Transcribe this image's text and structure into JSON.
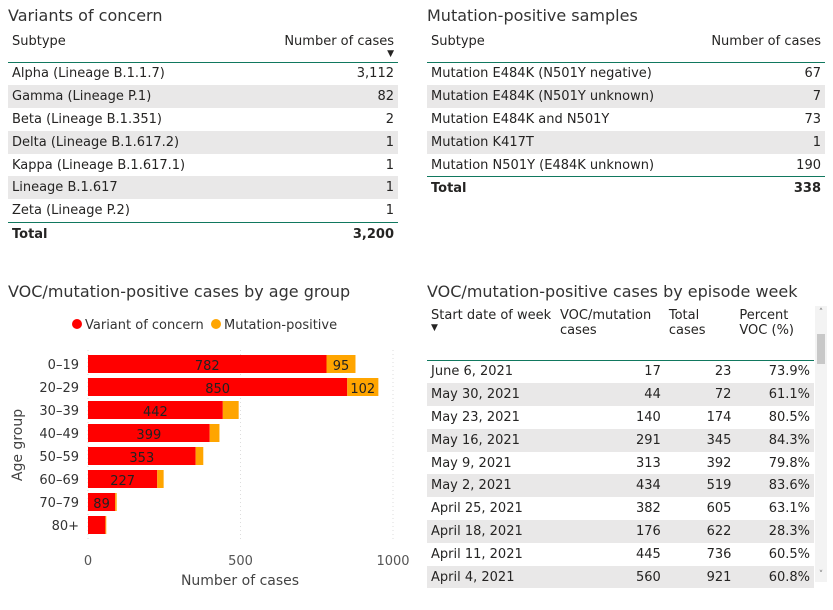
{
  "voc_table": {
    "title": "Variants of concern",
    "headers": [
      "Subtype",
      "Number of cases"
    ],
    "rows": [
      [
        "Alpha (Lineage B.1.1.7)",
        "3,112"
      ],
      [
        "Gamma (Lineage P.1)",
        "82"
      ],
      [
        "Beta (Lineage B.1.351)",
        "2"
      ],
      [
        "Delta (Lineage B.1.617.2)",
        "1"
      ],
      [
        "Kappa (Lineage B.1.617.1)",
        "1"
      ],
      [
        "Lineage B.1.617",
        "1"
      ],
      [
        "Zeta (Lineage P.2)",
        "1"
      ]
    ],
    "total": [
      "Total",
      "3,200"
    ]
  },
  "mut_table": {
    "title": "Mutation-positive samples",
    "headers": [
      "Subtype",
      "Number of cases"
    ],
    "rows": [
      [
        "Mutation E484K (N501Y negative)",
        "67"
      ],
      [
        "Mutation E484K (N501Y unknown)",
        "7"
      ],
      [
        "Mutation E484K and N501Y",
        "73"
      ],
      [
        "Mutation K417T",
        "1"
      ],
      [
        "Mutation N501Y (E484K unknown)",
        "190"
      ]
    ],
    "total": [
      "Total",
      "338"
    ]
  },
  "week_table": {
    "title": "VOC/mutation-positive cases by episode week",
    "headers": [
      "Start date of week",
      "VOC/mutation cases",
      "Total cases",
      "Percent VOC (%)"
    ],
    "rows": [
      [
        "June 6, 2021",
        "17",
        "23",
        "73.9%"
      ],
      [
        "May 30, 2021",
        "44",
        "72",
        "61.1%"
      ],
      [
        "May 23, 2021",
        "140",
        "174",
        "80.5%"
      ],
      [
        "May 16, 2021",
        "291",
        "345",
        "84.3%"
      ],
      [
        "May 9, 2021",
        "313",
        "392",
        "79.8%"
      ],
      [
        "May 2, 2021",
        "434",
        "519",
        "83.6%"
      ],
      [
        "April 25, 2021",
        "382",
        "605",
        "63.1%"
      ],
      [
        "April 18, 2021",
        "176",
        "622",
        "28.3%"
      ],
      [
        "April 11, 2021",
        "445",
        "736",
        "60.5%"
      ],
      [
        "April 4, 2021",
        "560",
        "921",
        "60.8%"
      ]
    ]
  },
  "chart_data": {
    "type": "bar",
    "orientation": "horizontal",
    "stacked": true,
    "title": "VOC/mutation-positive cases by age group",
    "categories": [
      "0–19",
      "20–29",
      "30–39",
      "40–49",
      "50–59",
      "60–69",
      "70–79",
      "80+"
    ],
    "series": [
      {
        "name": "Variant of concern",
        "color": "#ff0000",
        "values": [
          782,
          850,
          442,
          399,
          353,
          227,
          89,
          57
        ],
        "labels": [
          "782",
          "850",
          "442",
          "399",
          "353",
          "227",
          "89",
          ""
        ]
      },
      {
        "name": "Mutation-positive",
        "color": "#ffa500",
        "values": [
          95,
          102,
          52,
          32,
          25,
          21,
          5,
          3
        ],
        "labels": [
          "95",
          "102",
          "",
          "",
          "",
          "",
          "",
          ""
        ]
      }
    ],
    "xlabel": "Number of cases",
    "ylabel": "Age group",
    "xlim": [
      0,
      1000
    ],
    "xticks": [
      "0",
      "500",
      "1000"
    ],
    "legend": "top",
    "grid": true
  }
}
